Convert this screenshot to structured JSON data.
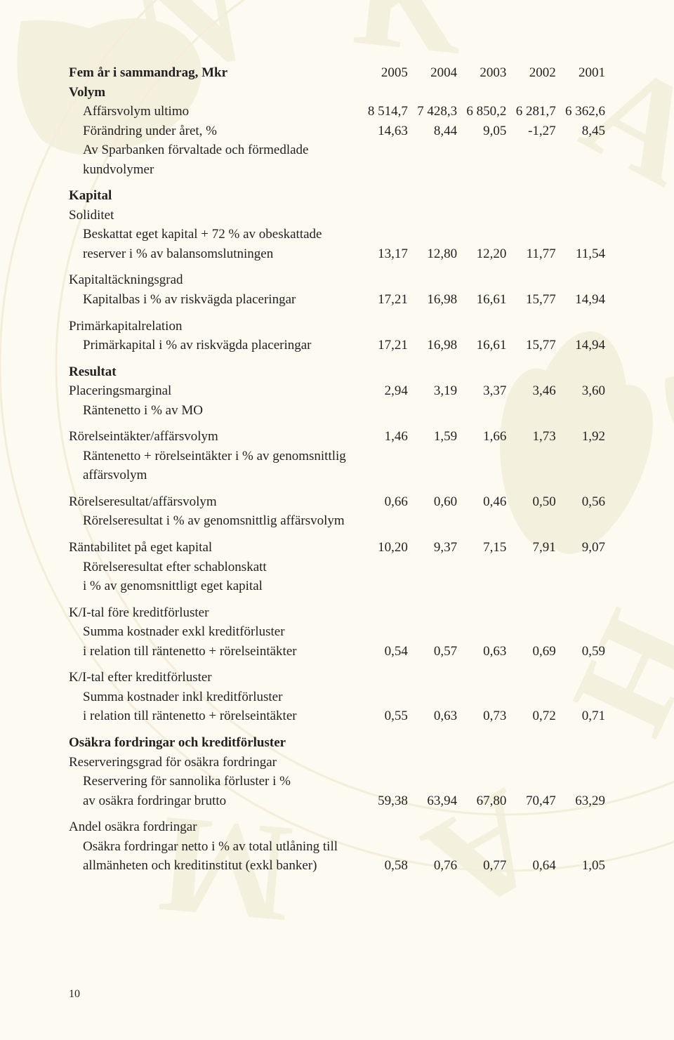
{
  "title": "Fem år i sammandrag, Mkr",
  "years": [
    "2005",
    "2004",
    "2003",
    "2002",
    "2001"
  ],
  "sections": {
    "volym": {
      "heading": "Volym",
      "rows": [
        {
          "label": "Affärsvolym ultimo",
          "v": [
            "8 514,7",
            "7 428,3",
            "6 850,2",
            "6 281,7",
            "6 362,6"
          ]
        },
        {
          "label": "Förändring under året, %",
          "v": [
            "14,63",
            "8,44",
            "9,05",
            "-1,27",
            "8,45"
          ]
        },
        {
          "label": "Av Sparbanken förvaltade och förmedlade kundvolymer",
          "v": [
            "",
            "",
            "",
            "",
            ""
          ]
        }
      ]
    },
    "kapital": {
      "heading": "Kapital",
      "groups": [
        {
          "sub": "Soliditet",
          "desc": [
            "Beskattat eget kapital + 72 % av obeskattade"
          ],
          "last": {
            "label": "reserver i % av balansomslutningen",
            "v": [
              "13,17",
              "12,80",
              "12,20",
              "11,77",
              "11,54"
            ]
          }
        },
        {
          "sub": "Kapitaltäckningsgrad",
          "last": {
            "label": "Kapitalbas i % av riskvägda placeringar",
            "v": [
              "17,21",
              "16,98",
              "16,61",
              "15,77",
              "14,94"
            ]
          }
        },
        {
          "sub": "Primärkapitalrelation",
          "last": {
            "label": "Primärkapital i % av riskvägda placeringar",
            "v": [
              "17,21",
              "16,98",
              "16,61",
              "15,77",
              "14,94"
            ]
          }
        }
      ]
    },
    "resultat": {
      "heading": "Resultat",
      "groups": [
        {
          "first": {
            "label": "Placeringsmarginal",
            "v": [
              "2,94",
              "3,19",
              "3,37",
              "3,46",
              "3,60"
            ]
          },
          "desc": [
            "Räntenetto i % av MO"
          ]
        },
        {
          "first": {
            "label": "Rörelseintäkter/affärsvolym",
            "v": [
              "1,46",
              "1,59",
              "1,66",
              "1,73",
              "1,92"
            ]
          },
          "desc": [
            "Räntenetto + rörelseintäkter i % av genomsnittlig affärsvolym"
          ]
        },
        {
          "first": {
            "label": "Rörelseresultat/affärsvolym",
            "v": [
              "0,66",
              "0,60",
              "0,46",
              "0,50",
              "0,56"
            ]
          },
          "desc": [
            "Rörelseresultat i % av genomsnittlig affärsvolym"
          ]
        },
        {
          "first": {
            "label": "Räntabilitet på eget kapital",
            "v": [
              "10,20",
              "9,37",
              "7,15",
              "7,91",
              "9,07"
            ]
          },
          "desc": [
            "Rörelseresultat efter schablonskatt",
            "i % av genomsnittligt eget kapital"
          ]
        },
        {
          "sub": "K/I-tal före kreditförluster",
          "desc": [
            "Summa kostnader exkl kreditförluster"
          ],
          "last": {
            "label": "i relation till räntenetto + rörelseintäkter",
            "v": [
              "0,54",
              "0,57",
              "0,63",
              "0,69",
              "0,59"
            ]
          }
        },
        {
          "sub": "K/I-tal efter kreditförluster",
          "desc": [
            "Summa kostnader inkl kreditförluster"
          ],
          "last": {
            "label": "i relation till räntenetto + rörelseintäkter",
            "v": [
              "0,55",
              "0,63",
              "0,73",
              "0,72",
              "0,71"
            ]
          }
        }
      ]
    },
    "osakra": {
      "heading": "Osäkra fordringar och kreditförluster",
      "groups": [
        {
          "sub": "Reserveringsgrad för osäkra fordringar",
          "desc": [
            "Reservering för sannolika förluster i %"
          ],
          "last": {
            "label": "av osäkra fordringar brutto",
            "v": [
              "59,38",
              "63,94",
              "67,80",
              "70,47",
              "63,29"
            ]
          }
        },
        {
          "sub": "Andel osäkra fordringar",
          "desc": [
            "Osäkra fordringar netto i % av total utlåning till"
          ],
          "last": {
            "label": "allmänheten och kreditinstitut (exkl banker)",
            "v": [
              "0,58",
              "0,76",
              "0,77",
              "0,64",
              "1,05"
            ]
          }
        }
      ]
    }
  },
  "page_number": "10",
  "colors": {
    "background": "#fdfbf1",
    "text": "#231f20",
    "watermark": "#eae3c7"
  }
}
